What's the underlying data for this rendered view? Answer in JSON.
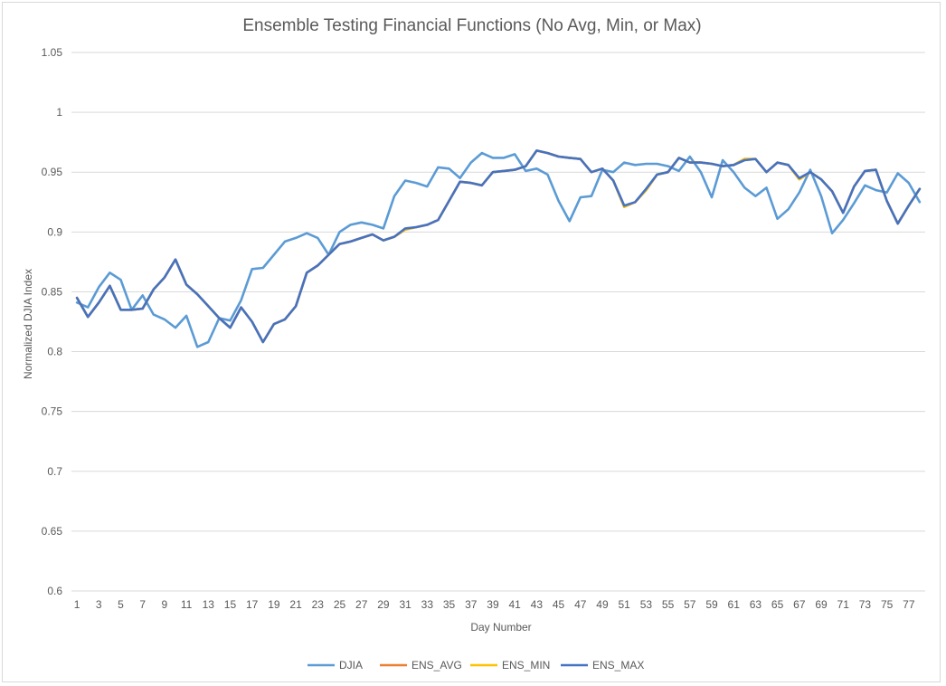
{
  "chart_data": {
    "type": "line",
    "title": "Ensemble Testing Financial Functions (No Avg, Min, or Max)",
    "xlabel": "Day Number",
    "ylabel": "Normalized DJIA Index",
    "ylim": [
      0.6,
      1.05
    ],
    "yticks": [
      "0.6",
      "0.65",
      "0.7",
      "0.75",
      "0.8",
      "0.85",
      "0.9",
      "0.95",
      "1",
      "1.05"
    ],
    "grid": true,
    "legend_position": "bottom",
    "x": [
      1,
      2,
      3,
      4,
      5,
      6,
      7,
      8,
      9,
      10,
      11,
      12,
      13,
      14,
      15,
      16,
      17,
      18,
      19,
      20,
      21,
      22,
      23,
      24,
      25,
      26,
      27,
      28,
      29,
      30,
      31,
      32,
      33,
      34,
      35,
      36,
      37,
      38,
      39,
      40,
      41,
      42,
      43,
      44,
      45,
      46,
      47,
      48,
      49,
      50,
      51,
      52,
      53,
      54,
      55,
      56,
      57,
      58,
      59,
      60,
      61,
      62,
      63,
      64,
      65,
      66,
      67,
      68,
      69,
      70,
      71,
      72,
      73,
      74,
      75,
      76,
      77,
      78
    ],
    "xtick_labels": [
      "1",
      "3",
      "5",
      "7",
      "9",
      "11",
      "13",
      "15",
      "17",
      "19",
      "21",
      "23",
      "25",
      "27",
      "29",
      "31",
      "33",
      "35",
      "37",
      "39",
      "41",
      "43",
      "45",
      "47",
      "49",
      "51",
      "53",
      "55",
      "57",
      "59",
      "61",
      "63",
      "65",
      "67",
      "69",
      "71",
      "73",
      "75",
      "77"
    ],
    "series": [
      {
        "name": "DJIA",
        "color": "#5b9bd5",
        "values": [
          0.841,
          0.837,
          0.854,
          0.866,
          0.86,
          0.835,
          0.847,
          0.831,
          0.827,
          0.82,
          0.83,
          0.804,
          0.808,
          0.828,
          0.826,
          0.843,
          0.869,
          0.87,
          0.881,
          0.892,
          0.895,
          0.899,
          0.895,
          0.881,
          0.9,
          0.906,
          0.908,
          0.906,
          0.903,
          0.93,
          0.943,
          0.941,
          0.938,
          0.954,
          0.953,
          0.945,
          0.958,
          0.966,
          0.962,
          0.962,
          0.965,
          0.951,
          0.953,
          0.948,
          0.926,
          0.909,
          0.929,
          0.93,
          0.952,
          0.95,
          0.958,
          0.956,
          0.957,
          0.957,
          0.955,
          0.951,
          0.963,
          0.95,
          0.929,
          0.96,
          0.95,
          0.937,
          0.93,
          0.937,
          0.911,
          0.919,
          0.933,
          0.952,
          0.93,
          0.899,
          0.91,
          0.924,
          0.939,
          0.935,
          0.933,
          0.949,
          0.941,
          0.925
        ]
      },
      {
        "name": "ENS_AVG",
        "color": "#ed7d31",
        "values": [
          0.845,
          0.829,
          0.841,
          0.855,
          0.835,
          0.835,
          0.836,
          0.852,
          0.862,
          0.877,
          0.856,
          0.848,
          0.838,
          0.828,
          0.82,
          0.837,
          0.825,
          0.808,
          0.823,
          0.827,
          0.838,
          0.866,
          0.872,
          0.881,
          0.89,
          0.892,
          0.895,
          0.898,
          0.893,
          0.896,
          0.902,
          0.904,
          0.906,
          0.91,
          0.926,
          0.942,
          0.941,
          0.939,
          0.95,
          0.951,
          0.952,
          0.955,
          0.968,
          0.966,
          0.963,
          0.962,
          0.961,
          0.95,
          0.953,
          0.943,
          0.921,
          0.925,
          0.935,
          0.948,
          0.95,
          0.962,
          0.958,
          0.958,
          0.957,
          0.955,
          0.956,
          0.961,
          0.961,
          0.95,
          0.958,
          0.956,
          0.944,
          0.95,
          0.944,
          0.934,
          0.916,
          0.938,
          0.951,
          0.952,
          0.926,
          0.907,
          0.922,
          0.936
        ]
      },
      {
        "name": "ENS_MIN",
        "color": "#ffc000",
        "values": [
          0.845,
          0.829,
          0.841,
          0.855,
          0.835,
          0.835,
          0.836,
          0.852,
          0.862,
          0.877,
          0.856,
          0.848,
          0.838,
          0.828,
          0.82,
          0.837,
          0.825,
          0.808,
          0.823,
          0.827,
          0.838,
          0.866,
          0.872,
          0.881,
          0.89,
          0.892,
          0.895,
          0.898,
          0.893,
          0.896,
          0.902,
          0.904,
          0.906,
          0.91,
          0.926,
          0.942,
          0.941,
          0.939,
          0.95,
          0.951,
          0.952,
          0.955,
          0.968,
          0.966,
          0.963,
          0.962,
          0.961,
          0.95,
          0.953,
          0.943,
          0.921,
          0.925,
          0.935,
          0.948,
          0.95,
          0.962,
          0.958,
          0.958,
          0.957,
          0.955,
          0.956,
          0.961,
          0.961,
          0.95,
          0.958,
          0.956,
          0.944,
          0.95,
          0.944,
          0.934,
          0.916,
          0.938,
          0.951,
          0.952,
          0.926,
          0.907,
          0.922,
          0.936
        ]
      },
      {
        "name": "ENS_MAX",
        "color": "#4472c4",
        "values": [
          0.845,
          0.829,
          0.841,
          0.855,
          0.835,
          0.835,
          0.836,
          0.852,
          0.862,
          0.877,
          0.856,
          0.848,
          0.838,
          0.828,
          0.82,
          0.837,
          0.825,
          0.808,
          0.823,
          0.827,
          0.838,
          0.866,
          0.872,
          0.881,
          0.89,
          0.892,
          0.895,
          0.898,
          0.893,
          0.896,
          0.903,
          0.904,
          0.906,
          0.91,
          0.926,
          0.942,
          0.941,
          0.939,
          0.95,
          0.951,
          0.952,
          0.955,
          0.968,
          0.966,
          0.963,
          0.962,
          0.961,
          0.95,
          0.953,
          0.943,
          0.922,
          0.925,
          0.936,
          0.948,
          0.95,
          0.962,
          0.958,
          0.958,
          0.957,
          0.955,
          0.956,
          0.96,
          0.961,
          0.95,
          0.958,
          0.956,
          0.945,
          0.95,
          0.944,
          0.934,
          0.916,
          0.938,
          0.951,
          0.952,
          0.926,
          0.907,
          0.922,
          0.936
        ]
      }
    ]
  }
}
